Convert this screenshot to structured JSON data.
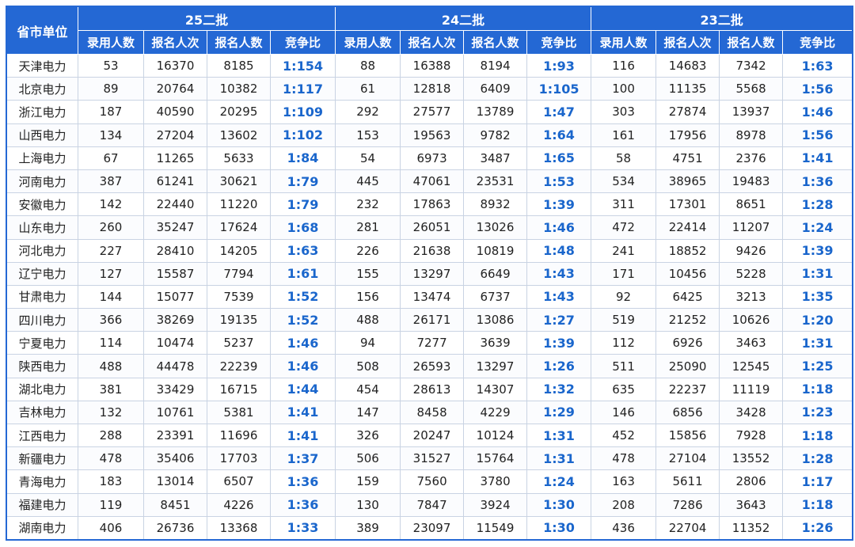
{
  "table": {
    "corner": "省市单位",
    "groups": [
      "25二批",
      "24二批",
      "23二批"
    ],
    "subheaders": [
      "录用人数",
      "报名人次",
      "报名人数",
      "竞争比"
    ],
    "rows": [
      {
        "name": "天津电力",
        "cells": [
          "53",
          "16370",
          "8185",
          "1:154",
          "88",
          "16388",
          "8194",
          "1:93",
          "116",
          "14683",
          "7342",
          "1:63"
        ]
      },
      {
        "name": "北京电力",
        "cells": [
          "89",
          "20764",
          "10382",
          "1:117",
          "61",
          "12818",
          "6409",
          "1:105",
          "100",
          "11135",
          "5568",
          "1:56"
        ]
      },
      {
        "name": "浙江电力",
        "cells": [
          "187",
          "40590",
          "20295",
          "1:109",
          "292",
          "27577",
          "13789",
          "1:47",
          "303",
          "27874",
          "13937",
          "1:46"
        ]
      },
      {
        "name": "山西电力",
        "cells": [
          "134",
          "27204",
          "13602",
          "1:102",
          "153",
          "19563",
          "9782",
          "1:64",
          "161",
          "17956",
          "8978",
          "1:56"
        ]
      },
      {
        "name": "上海电力",
        "cells": [
          "67",
          "11265",
          "5633",
          "1:84",
          "54",
          "6973",
          "3487",
          "1:65",
          "58",
          "4751",
          "2376",
          "1:41"
        ]
      },
      {
        "name": "河南电力",
        "cells": [
          "387",
          "61241",
          "30621",
          "1:79",
          "445",
          "47061",
          "23531",
          "1:53",
          "534",
          "38965",
          "19483",
          "1:36"
        ]
      },
      {
        "name": "安徽电力",
        "cells": [
          "142",
          "22440",
          "11220",
          "1:79",
          "232",
          "17863",
          "8932",
          "1:39",
          "311",
          "17301",
          "8651",
          "1:28"
        ]
      },
      {
        "name": "山东电力",
        "cells": [
          "260",
          "35247",
          "17624",
          "1:68",
          "281",
          "26051",
          "13026",
          "1:46",
          "472",
          "22414",
          "11207",
          "1:24"
        ]
      },
      {
        "name": "河北电力",
        "cells": [
          "227",
          "28410",
          "14205",
          "1:63",
          "226",
          "21638",
          "10819",
          "1:48",
          "241",
          "18852",
          "9426",
          "1:39"
        ]
      },
      {
        "name": "辽宁电力",
        "cells": [
          "127",
          "15587",
          "7794",
          "1:61",
          "155",
          "13297",
          "6649",
          "1:43",
          "171",
          "10456",
          "5228",
          "1:31"
        ]
      },
      {
        "name": "甘肃电力",
        "cells": [
          "144",
          "15077",
          "7539",
          "1:52",
          "156",
          "13474",
          "6737",
          "1:43",
          "92",
          "6425",
          "3213",
          "1:35"
        ]
      },
      {
        "name": "四川电力",
        "cells": [
          "366",
          "38269",
          "19135",
          "1:52",
          "488",
          "26171",
          "13086",
          "1:27",
          "519",
          "21252",
          "10626",
          "1:20"
        ]
      },
      {
        "name": "宁夏电力",
        "cells": [
          "114",
          "10474",
          "5237",
          "1:46",
          "94",
          "7277",
          "3639",
          "1:39",
          "112",
          "6926",
          "3463",
          "1:31"
        ]
      },
      {
        "name": "陕西电力",
        "cells": [
          "488",
          "44478",
          "22239",
          "1:46",
          "508",
          "26593",
          "13297",
          "1:26",
          "511",
          "25090",
          "12545",
          "1:25"
        ]
      },
      {
        "name": "湖北电力",
        "cells": [
          "381",
          "33429",
          "16715",
          "1:44",
          "454",
          "28613",
          "14307",
          "1:32",
          "635",
          "22237",
          "11119",
          "1:18"
        ]
      },
      {
        "name": "吉林电力",
        "cells": [
          "132",
          "10761",
          "5381",
          "1:41",
          "147",
          "8458",
          "4229",
          "1:29",
          "146",
          "6856",
          "3428",
          "1:23"
        ]
      },
      {
        "name": "江西电力",
        "cells": [
          "288",
          "23391",
          "11696",
          "1:41",
          "326",
          "20247",
          "10124",
          "1:31",
          "452",
          "15856",
          "7928",
          "1:18"
        ]
      },
      {
        "name": "新疆电力",
        "cells": [
          "478",
          "35406",
          "17703",
          "1:37",
          "506",
          "31527",
          "15764",
          "1:31",
          "478",
          "27104",
          "13552",
          "1:28"
        ]
      },
      {
        "name": "青海电力",
        "cells": [
          "183",
          "13014",
          "6507",
          "1:36",
          "159",
          "7560",
          "3780",
          "1:24",
          "163",
          "5611",
          "2806",
          "1:17"
        ]
      },
      {
        "name": "福建电力",
        "cells": [
          "119",
          "8451",
          "4226",
          "1:36",
          "130",
          "7847",
          "3924",
          "1:30",
          "208",
          "7286",
          "3643",
          "1:18"
        ]
      },
      {
        "name": "湖南电力",
        "cells": [
          "406",
          "26736",
          "13368",
          "1:33",
          "389",
          "23097",
          "11549",
          "1:30",
          "436",
          "22704",
          "11352",
          "1:26"
        ]
      }
    ]
  },
  "colors": {
    "header_bg": "#2468d4",
    "ratio_text": "#1a66cc"
  }
}
